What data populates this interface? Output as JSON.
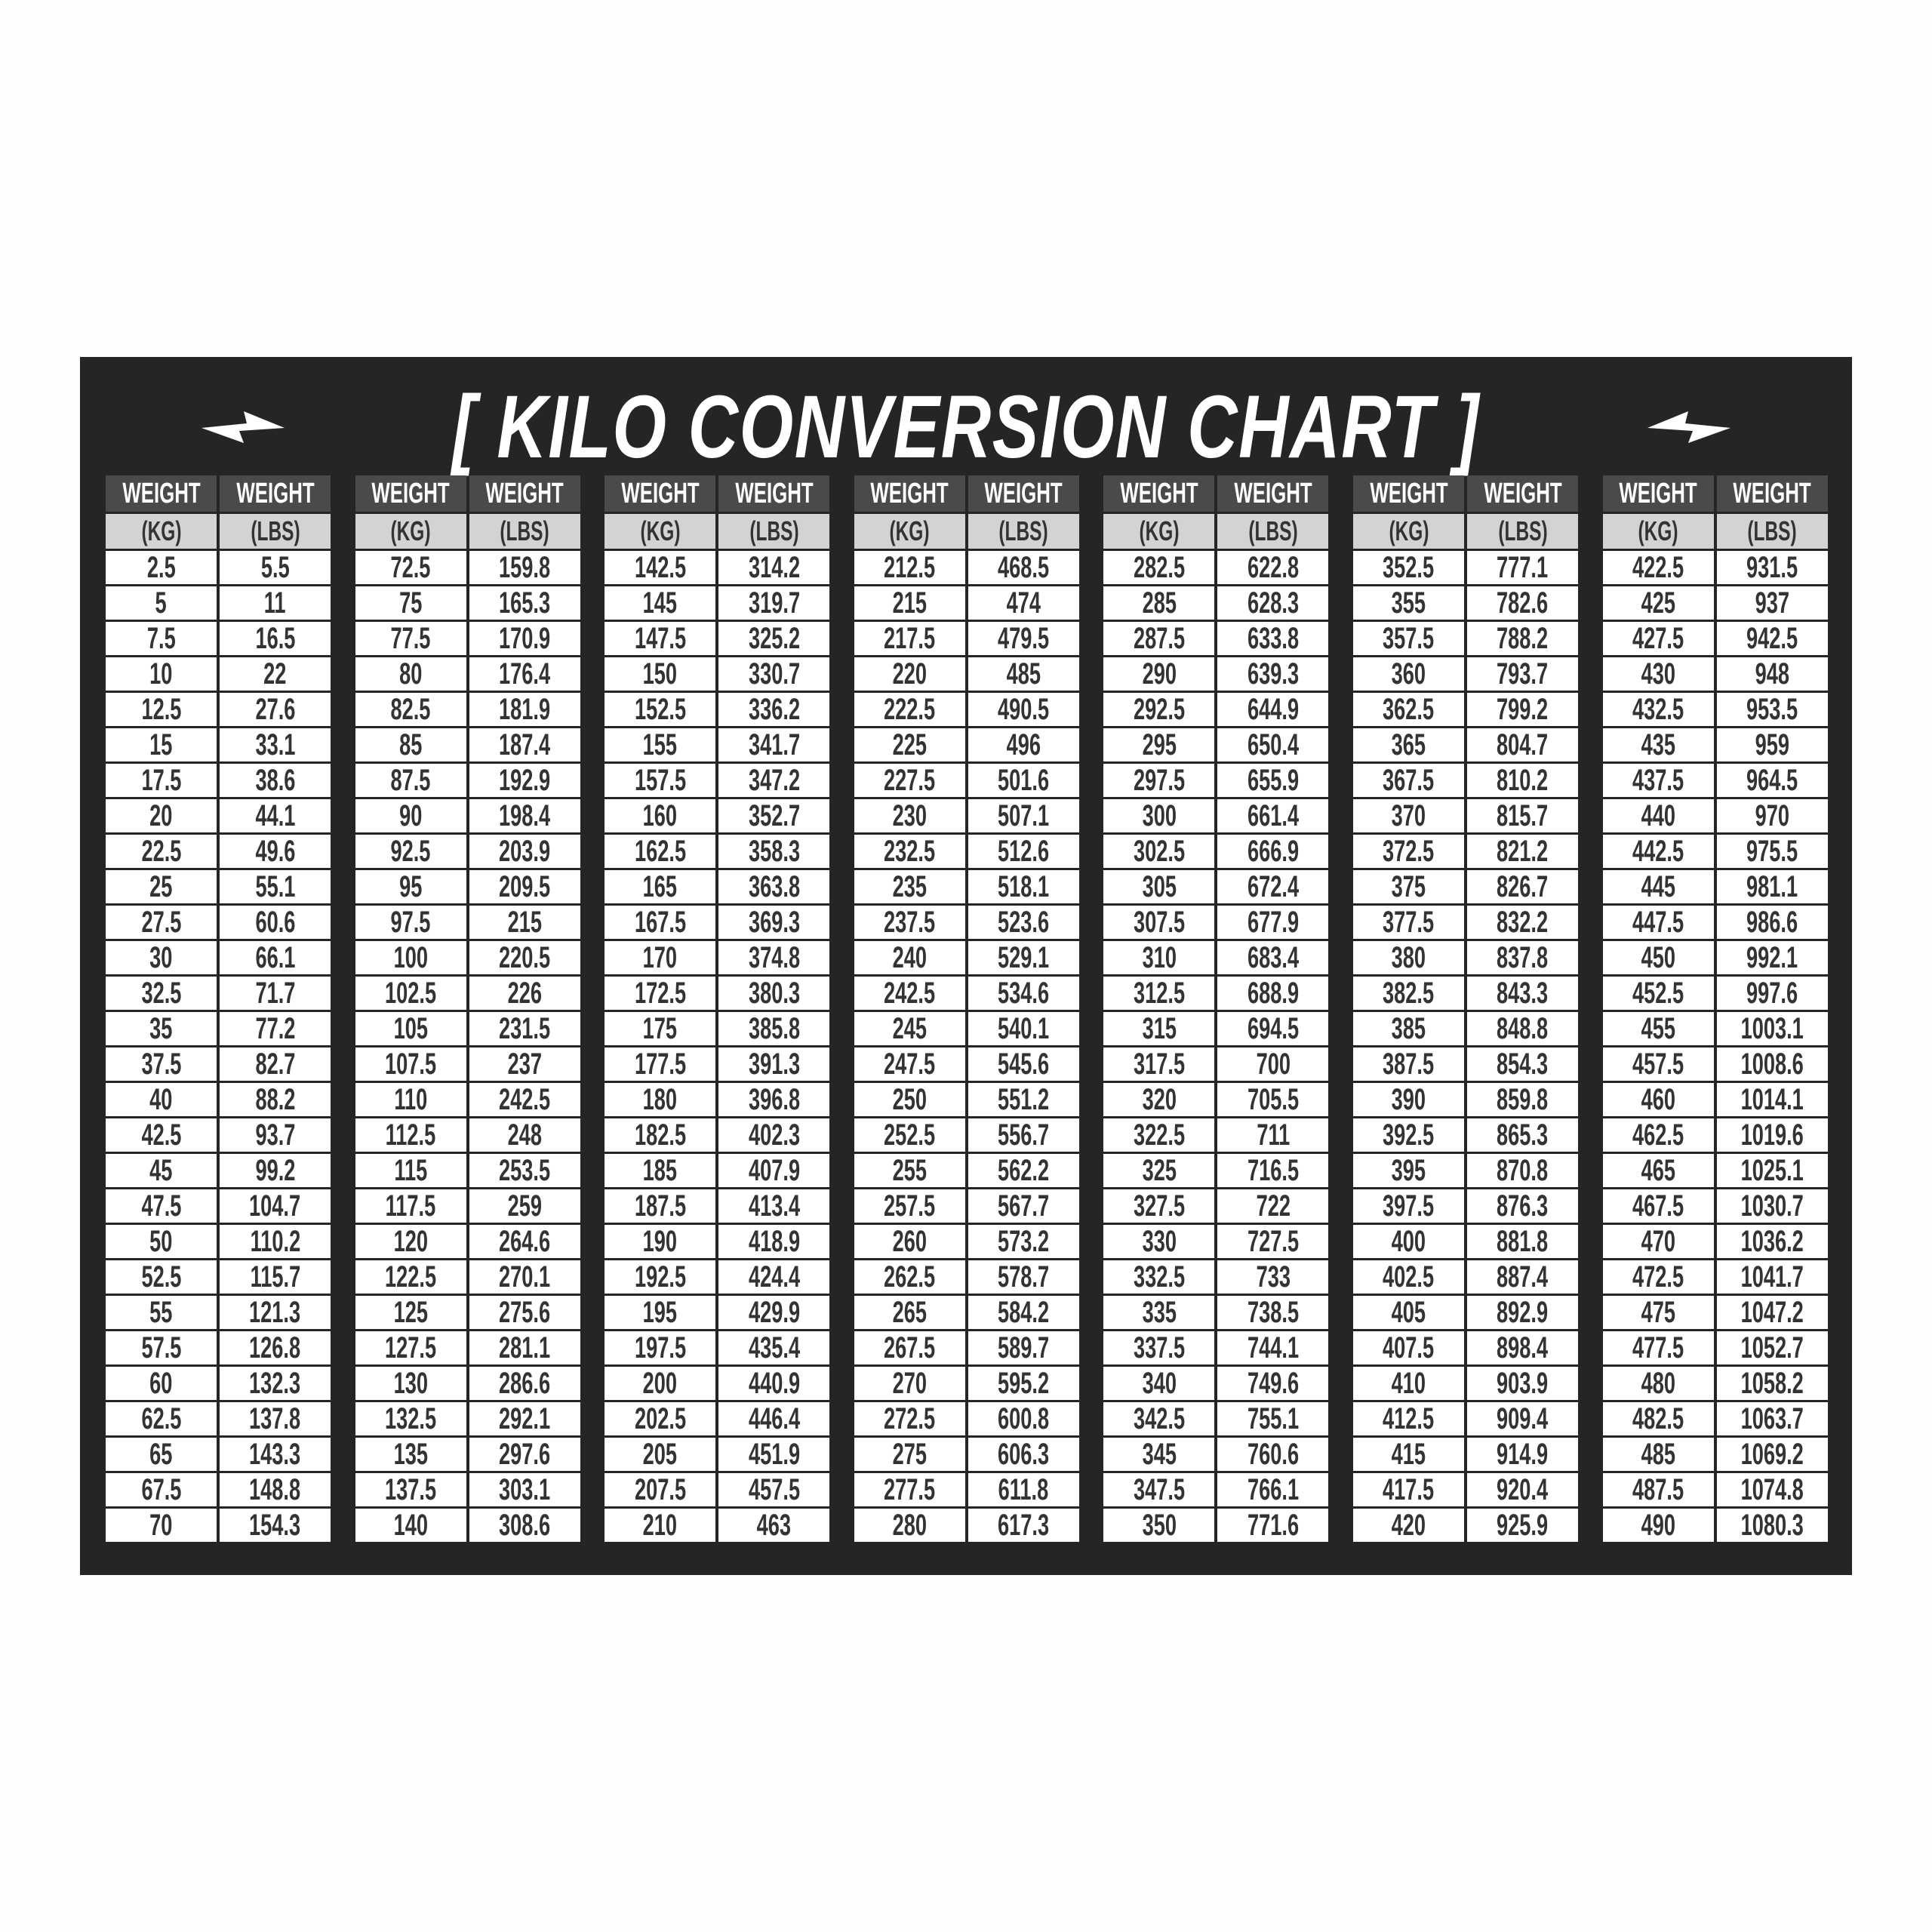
{
  "title": "[ KILO CONVERSION CHART ]",
  "colors": {
    "panel": "#252527",
    "header": "#4a4a4c",
    "subheader": "#d3d3d5",
    "cell": "#ffffff",
    "text": "#333333"
  },
  "icons": [
    "lightning-bolt-icon"
  ],
  "header": {
    "col1_top": "WEIGHT",
    "col2_top": "WEIGHT",
    "col1_unit": "(KG)",
    "col2_unit": "(LBS)"
  },
  "tables": [
    {
      "rows": [
        [
          "2.5",
          "5.5"
        ],
        [
          "5",
          "11"
        ],
        [
          "7.5",
          "16.5"
        ],
        [
          "10",
          "22"
        ],
        [
          "12.5",
          "27.6"
        ],
        [
          "15",
          "33.1"
        ],
        [
          "17.5",
          "38.6"
        ],
        [
          "20",
          "44.1"
        ],
        [
          "22.5",
          "49.6"
        ],
        [
          "25",
          "55.1"
        ],
        [
          "27.5",
          "60.6"
        ],
        [
          "30",
          "66.1"
        ],
        [
          "32.5",
          "71.7"
        ],
        [
          "35",
          "77.2"
        ],
        [
          "37.5",
          "82.7"
        ],
        [
          "40",
          "88.2"
        ],
        [
          "42.5",
          "93.7"
        ],
        [
          "45",
          "99.2"
        ],
        [
          "47.5",
          "104.7"
        ],
        [
          "50",
          "110.2"
        ],
        [
          "52.5",
          "115.7"
        ],
        [
          "55",
          "121.3"
        ],
        [
          "57.5",
          "126.8"
        ],
        [
          "60",
          "132.3"
        ],
        [
          "62.5",
          "137.8"
        ],
        [
          "65",
          "143.3"
        ],
        [
          "67.5",
          "148.8"
        ],
        [
          "70",
          "154.3"
        ]
      ]
    },
    {
      "rows": [
        [
          "72.5",
          "159.8"
        ],
        [
          "75",
          "165.3"
        ],
        [
          "77.5",
          "170.9"
        ],
        [
          "80",
          "176.4"
        ],
        [
          "82.5",
          "181.9"
        ],
        [
          "85",
          "187.4"
        ],
        [
          "87.5",
          "192.9"
        ],
        [
          "90",
          "198.4"
        ],
        [
          "92.5",
          "203.9"
        ],
        [
          "95",
          "209.5"
        ],
        [
          "97.5",
          "215"
        ],
        [
          "100",
          "220.5"
        ],
        [
          "102.5",
          "226"
        ],
        [
          "105",
          "231.5"
        ],
        [
          "107.5",
          "237"
        ],
        [
          "110",
          "242.5"
        ],
        [
          "112.5",
          "248"
        ],
        [
          "115",
          "253.5"
        ],
        [
          "117.5",
          "259"
        ],
        [
          "120",
          "264.6"
        ],
        [
          "122.5",
          "270.1"
        ],
        [
          "125",
          "275.6"
        ],
        [
          "127.5",
          "281.1"
        ],
        [
          "130",
          "286.6"
        ],
        [
          "132.5",
          "292.1"
        ],
        [
          "135",
          "297.6"
        ],
        [
          "137.5",
          "303.1"
        ],
        [
          "140",
          "308.6"
        ]
      ]
    },
    {
      "rows": [
        [
          "142.5",
          "314.2"
        ],
        [
          "145",
          "319.7"
        ],
        [
          "147.5",
          "325.2"
        ],
        [
          "150",
          "330.7"
        ],
        [
          "152.5",
          "336.2"
        ],
        [
          "155",
          "341.7"
        ],
        [
          "157.5",
          "347.2"
        ],
        [
          "160",
          "352.7"
        ],
        [
          "162.5",
          "358.3"
        ],
        [
          "165",
          "363.8"
        ],
        [
          "167.5",
          "369.3"
        ],
        [
          "170",
          "374.8"
        ],
        [
          "172.5",
          "380.3"
        ],
        [
          "175",
          "385.8"
        ],
        [
          "177.5",
          "391.3"
        ],
        [
          "180",
          "396.8"
        ],
        [
          "182.5",
          "402.3"
        ],
        [
          "185",
          "407.9"
        ],
        [
          "187.5",
          "413.4"
        ],
        [
          "190",
          "418.9"
        ],
        [
          "192.5",
          "424.4"
        ],
        [
          "195",
          "429.9"
        ],
        [
          "197.5",
          "435.4"
        ],
        [
          "200",
          "440.9"
        ],
        [
          "202.5",
          "446.4"
        ],
        [
          "205",
          "451.9"
        ],
        [
          "207.5",
          "457.5"
        ],
        [
          "210",
          "463"
        ]
      ]
    },
    {
      "rows": [
        [
          "212.5",
          "468.5"
        ],
        [
          "215",
          "474"
        ],
        [
          "217.5",
          "479.5"
        ],
        [
          "220",
          "485"
        ],
        [
          "222.5",
          "490.5"
        ],
        [
          "225",
          "496"
        ],
        [
          "227.5",
          "501.6"
        ],
        [
          "230",
          "507.1"
        ],
        [
          "232.5",
          "512.6"
        ],
        [
          "235",
          "518.1"
        ],
        [
          "237.5",
          "523.6"
        ],
        [
          "240",
          "529.1"
        ],
        [
          "242.5",
          "534.6"
        ],
        [
          "245",
          "540.1"
        ],
        [
          "247.5",
          "545.6"
        ],
        [
          "250",
          "551.2"
        ],
        [
          "252.5",
          "556.7"
        ],
        [
          "255",
          "562.2"
        ],
        [
          "257.5",
          "567.7"
        ],
        [
          "260",
          "573.2"
        ],
        [
          "262.5",
          "578.7"
        ],
        [
          "265",
          "584.2"
        ],
        [
          "267.5",
          "589.7"
        ],
        [
          "270",
          "595.2"
        ],
        [
          "272.5",
          "600.8"
        ],
        [
          "275",
          "606.3"
        ],
        [
          "277.5",
          "611.8"
        ],
        [
          "280",
          "617.3"
        ]
      ]
    },
    {
      "rows": [
        [
          "282.5",
          "622.8"
        ],
        [
          "285",
          "628.3"
        ],
        [
          "287.5",
          "633.8"
        ],
        [
          "290",
          "639.3"
        ],
        [
          "292.5",
          "644.9"
        ],
        [
          "295",
          "650.4"
        ],
        [
          "297.5",
          "655.9"
        ],
        [
          "300",
          "661.4"
        ],
        [
          "302.5",
          "666.9"
        ],
        [
          "305",
          "672.4"
        ],
        [
          "307.5",
          "677.9"
        ],
        [
          "310",
          "683.4"
        ],
        [
          "312.5",
          "688.9"
        ],
        [
          "315",
          "694.5"
        ],
        [
          "317.5",
          "700"
        ],
        [
          "320",
          "705.5"
        ],
        [
          "322.5",
          "711"
        ],
        [
          "325",
          "716.5"
        ],
        [
          "327.5",
          "722"
        ],
        [
          "330",
          "727.5"
        ],
        [
          "332.5",
          "733"
        ],
        [
          "335",
          "738.5"
        ],
        [
          "337.5",
          "744.1"
        ],
        [
          "340",
          "749.6"
        ],
        [
          "342.5",
          "755.1"
        ],
        [
          "345",
          "760.6"
        ],
        [
          "347.5",
          "766.1"
        ],
        [
          "350",
          "771.6"
        ]
      ]
    },
    {
      "rows": [
        [
          "352.5",
          "777.1"
        ],
        [
          "355",
          "782.6"
        ],
        [
          "357.5",
          "788.2"
        ],
        [
          "360",
          "793.7"
        ],
        [
          "362.5",
          "799.2"
        ],
        [
          "365",
          "804.7"
        ],
        [
          "367.5",
          "810.2"
        ],
        [
          "370",
          "815.7"
        ],
        [
          "372.5",
          "821.2"
        ],
        [
          "375",
          "826.7"
        ],
        [
          "377.5",
          "832.2"
        ],
        [
          "380",
          "837.8"
        ],
        [
          "382.5",
          "843.3"
        ],
        [
          "385",
          "848.8"
        ],
        [
          "387.5",
          "854.3"
        ],
        [
          "390",
          "859.8"
        ],
        [
          "392.5",
          "865.3"
        ],
        [
          "395",
          "870.8"
        ],
        [
          "397.5",
          "876.3"
        ],
        [
          "400",
          "881.8"
        ],
        [
          "402.5",
          "887.4"
        ],
        [
          "405",
          "892.9"
        ],
        [
          "407.5",
          "898.4"
        ],
        [
          "410",
          "903.9"
        ],
        [
          "412.5",
          "909.4"
        ],
        [
          "415",
          "914.9"
        ],
        [
          "417.5",
          "920.4"
        ],
        [
          "420",
          "925.9"
        ]
      ]
    },
    {
      "rows": [
        [
          "422.5",
          "931.5"
        ],
        [
          "425",
          "937"
        ],
        [
          "427.5",
          "942.5"
        ],
        [
          "430",
          "948"
        ],
        [
          "432.5",
          "953.5"
        ],
        [
          "435",
          "959"
        ],
        [
          "437.5",
          "964.5"
        ],
        [
          "440",
          "970"
        ],
        [
          "442.5",
          "975.5"
        ],
        [
          "445",
          "981.1"
        ],
        [
          "447.5",
          "986.6"
        ],
        [
          "450",
          "992.1"
        ],
        [
          "452.5",
          "997.6"
        ],
        [
          "455",
          "1003.1"
        ],
        [
          "457.5",
          "1008.6"
        ],
        [
          "460",
          "1014.1"
        ],
        [
          "462.5",
          "1019.6"
        ],
        [
          "465",
          "1025.1"
        ],
        [
          "467.5",
          "1030.7"
        ],
        [
          "470",
          "1036.2"
        ],
        [
          "472.5",
          "1041.7"
        ],
        [
          "475",
          "1047.2"
        ],
        [
          "477.5",
          "1052.7"
        ],
        [
          "480",
          "1058.2"
        ],
        [
          "482.5",
          "1063.7"
        ],
        [
          "485",
          "1069.2"
        ],
        [
          "487.5",
          "1074.8"
        ],
        [
          "490",
          "1080.3"
        ]
      ]
    }
  ]
}
